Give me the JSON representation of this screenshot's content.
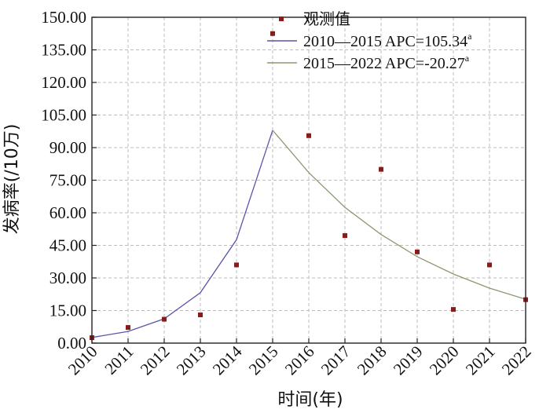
{
  "chart_data": {
    "type": "scatter",
    "title": "",
    "xlabel": "时间(年)",
    "ylabel": "发病率(/10万)",
    "xlim": [
      2010,
      2022
    ],
    "ylim": [
      0,
      150
    ],
    "grid": true,
    "legend_position": "top-center",
    "x_ticks": [
      "2010",
      "2011",
      "2012",
      "2013",
      "2014",
      "2015",
      "2016",
      "2017",
      "2018",
      "2019",
      "2020",
      "2021",
      "2022"
    ],
    "y_ticks": [
      "0.00",
      "15.00",
      "30.00",
      "45.00",
      "60.00",
      "75.00",
      "90.00",
      "105.00",
      "120.00",
      "135.00",
      "150.00"
    ],
    "series": [
      {
        "name": "观测值",
        "kind": "points",
        "color": "#8b1a1a",
        "x": [
          2010,
          2011,
          2012,
          2013,
          2014,
          2015,
          2016,
          2017,
          2018,
          2019,
          2020,
          2021,
          2022
        ],
        "y": [
          2.5,
          7.2,
          11.0,
          13.0,
          36.0,
          142.5,
          95.5,
          49.5,
          80.0,
          42.0,
          15.5,
          36.0,
          20.0
        ]
      },
      {
        "name": "2010—2015 APC=105.34",
        "name_sup": "a",
        "kind": "line",
        "color": "#5a55a8",
        "x": [
          2010,
          2011,
          2012,
          2013,
          2014,
          2015
        ],
        "y": [
          2.6,
          5.4,
          11.2,
          23.2,
          47.6,
          98.0
        ]
      },
      {
        "name": "2015—2022 APC=-20.27",
        "name_sup": "a",
        "kind": "line",
        "color": "#8a9a70",
        "x": [
          2015,
          2016,
          2017,
          2018,
          2019,
          2020,
          2021,
          2022
        ],
        "y": [
          98.0,
          78.5,
          62.5,
          50.0,
          39.8,
          31.8,
          25.3,
          20.2
        ]
      }
    ]
  }
}
